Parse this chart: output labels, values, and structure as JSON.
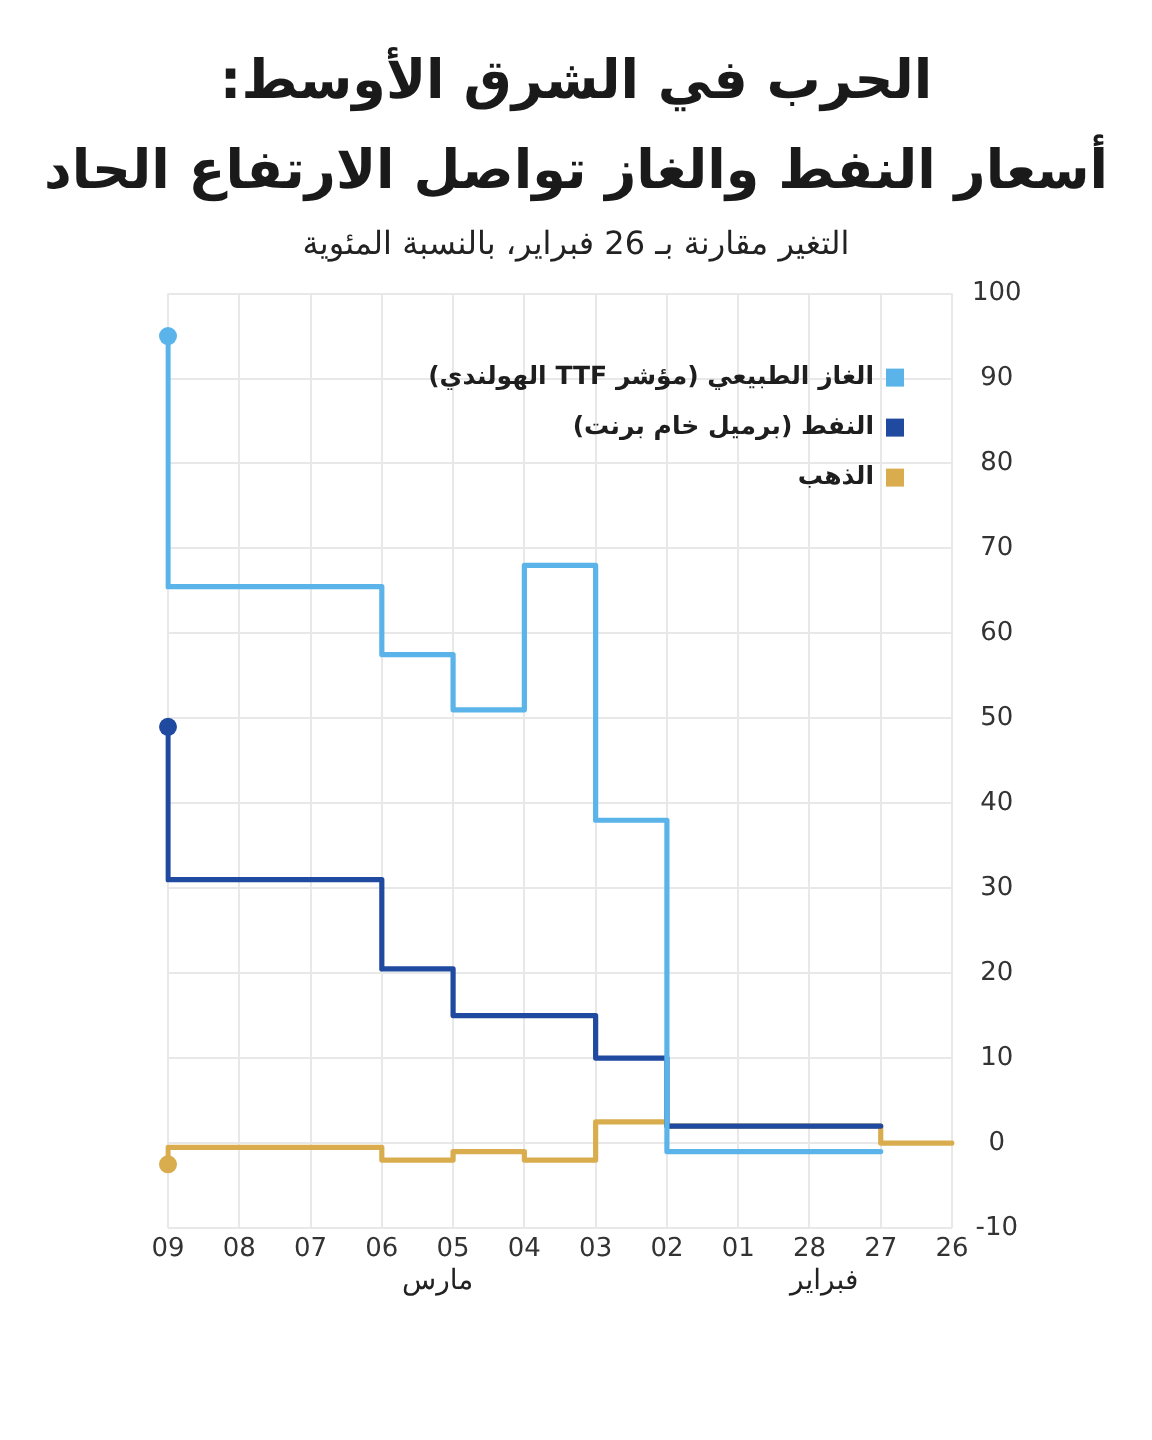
{
  "chart_data": {
    "type": "step",
    "title": "الحرب في الشرق الأوسط:\nأسعار النفط والغاز تواصل الارتفاع الحاد",
    "subtitle": "التغير مقارنة بـ 26 فبراير، بالنسبة المئوية",
    "categories": [
      "09",
      "08",
      "07",
      "06",
      "05",
      "04",
      "03",
      "02",
      "01",
      "28",
      "27",
      "26"
    ],
    "series": [
      {
        "name": "الغاز الطبيعي (مؤشر TTF الهولندي)",
        "color": "#5ab4ea",
        "values": [
          95,
          null,
          null,
          65.5,
          57.5,
          51,
          68,
          38,
          null,
          null,
          -1,
          null
        ]
      },
      {
        "name": "النفط (برميل خام برنت)",
        "color": "#1f4aa0",
        "values": [
          49,
          null,
          null,
          31,
          20.5,
          15,
          15,
          10,
          null,
          null,
          2,
          null
        ]
      },
      {
        "name": "الذهب",
        "color": "#d9ad4e",
        "values": [
          -2.5,
          null,
          null,
          -0.5,
          -2,
          -1,
          -2,
          2.5,
          null,
          null,
          2,
          0
        ]
      },
      {
        "type": "scatter",
        "color": "#5ab4ea",
        "x": [
          "09"
        ],
        "values": [
          95
        ]
      },
      {
        "type": "scatter",
        "color": "#1f4aa0",
        "x": [
          "09"
        ],
        "values": [
          49
        ]
      },
      {
        "type": "scatter",
        "color": "#d9ad4e",
        "x": [
          "09"
        ],
        "values": [
          -2.5
        ]
      }
    ],
    "ylim": [
      -10,
      100
    ],
    "yticks": [
      -10,
      0,
      10,
      20,
      30,
      40,
      50,
      60,
      70,
      80,
      90,
      100
    ],
    "grid": true,
    "legend": "top right",
    "line_style": "solid",
    "annotations": [
      "مارس",
      "فبراير"
    ]
  }
}
